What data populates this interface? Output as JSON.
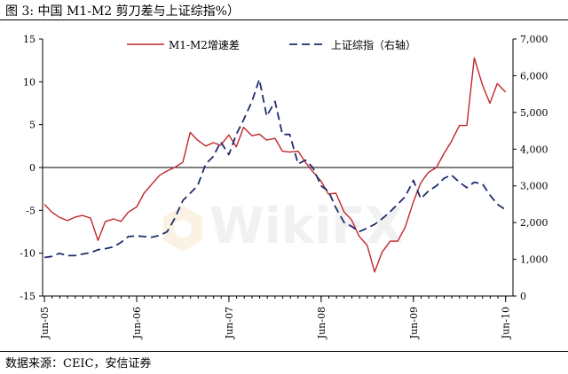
{
  "title": "图  3:  中国 M1-M2 剪刀差与上证综指%）",
  "source": "数据来源：CEIC，安信证券",
  "watermark": "WikiFX",
  "colors": {
    "m1m2": "#c0272d",
    "sse": "#1f2d6e",
    "axis": "#000000"
  },
  "chart_data": {
    "type": "line",
    "x_tick_labels": [
      "Jun-05",
      "Jun-06",
      "Jun-07",
      "Jun-08",
      "Jun-09",
      "Jun-10"
    ],
    "x_range": [
      2005.4,
      2010.5
    ],
    "y_left": {
      "range": [
        -15,
        15
      ],
      "ticks": [
        "15",
        "10",
        "5",
        "0",
        "-5",
        "-10",
        "-15"
      ]
    },
    "y_right": {
      "range": [
        0,
        7000
      ],
      "ticks": [
        "7,000",
        "6,000",
        "5,000",
        "4,000",
        "3,000",
        "2,000",
        "1,000",
        "0"
      ]
    },
    "series": [
      {
        "name": "M1-M2增速差",
        "axis": "left",
        "style": "solid",
        "x": [
          2005.42,
          2005.5,
          2005.58,
          2005.67,
          2005.75,
          2005.83,
          2005.92,
          2006.0,
          2006.08,
          2006.17,
          2006.25,
          2006.33,
          2006.42,
          2006.5,
          2006.58,
          2006.67,
          2006.75,
          2006.83,
          2006.92,
          2007.0,
          2007.08,
          2007.17,
          2007.25,
          2007.33,
          2007.42,
          2007.5,
          2007.58,
          2007.67,
          2007.75,
          2007.83,
          2007.92,
          2008.0,
          2008.08,
          2008.17,
          2008.25,
          2008.33,
          2008.42,
          2008.5,
          2008.58,
          2008.67,
          2008.75,
          2008.83,
          2008.92,
          2009.0,
          2009.08,
          2009.17,
          2009.25,
          2009.33,
          2009.42,
          2009.5,
          2009.58,
          2009.67,
          2009.75,
          2009.83,
          2009.92,
          2010.0,
          2010.08,
          2010.17,
          2010.25,
          2010.33,
          2010.42
        ],
        "values": [
          -4.3,
          -5.2,
          -5.8,
          -6.2,
          -5.8,
          -5.6,
          -5.9,
          -8.5,
          -6.3,
          -6.0,
          -6.3,
          -5.2,
          -4.6,
          -3.0,
          -2.0,
          -0.9,
          -0.4,
          0.0,
          0.6,
          4.1,
          3.2,
          2.5,
          2.9,
          2.6,
          3.8,
          2.4,
          4.7,
          3.7,
          3.9,
          3.2,
          3.4,
          1.9,
          1.8,
          1.9,
          0.6,
          -0.5,
          -1.6,
          -3.1,
          -3.0,
          -5.2,
          -6.1,
          -8.0,
          -9.1,
          -12.2,
          -9.9,
          -8.6,
          -8.6,
          -7.0,
          -4.0,
          -1.8,
          -0.6,
          0.0,
          1.6,
          3.0,
          4.9,
          4.9,
          12.8,
          9.6,
          7.5,
          9.8,
          8.8
        ]
      },
      {
        "name": "上证综指（右轴）",
        "axis": "right",
        "style": "dashed",
        "x": [
          2005.42,
          2005.5,
          2005.58,
          2005.67,
          2005.75,
          2005.83,
          2005.92,
          2006.0,
          2006.08,
          2006.17,
          2006.25,
          2006.33,
          2006.42,
          2006.5,
          2006.58,
          2006.67,
          2006.75,
          2006.83,
          2006.92,
          2007.0,
          2007.08,
          2007.17,
          2007.25,
          2007.33,
          2007.42,
          2007.5,
          2007.58,
          2007.67,
          2007.75,
          2007.83,
          2007.92,
          2008.0,
          2008.08,
          2008.17,
          2008.25,
          2008.33,
          2008.42,
          2008.5,
          2008.58,
          2008.67,
          2008.75,
          2008.83,
          2008.92,
          2009.0,
          2009.08,
          2009.17,
          2009.25,
          2009.33,
          2009.42,
          2009.5,
          2009.58,
          2009.67,
          2009.75,
          2009.83,
          2009.92,
          2010.0,
          2010.08,
          2010.17,
          2010.25,
          2010.33,
          2010.42
        ],
        "values": [
          1050,
          1080,
          1160,
          1100,
          1100,
          1140,
          1180,
          1260,
          1290,
          1340,
          1460,
          1620,
          1640,
          1620,
          1600,
          1650,
          1750,
          2100,
          2600,
          2800,
          3000,
          3600,
          3800,
          4200,
          3850,
          4400,
          4800,
          5300,
          5900,
          4900,
          5300,
          4400,
          4400,
          3600,
          3700,
          3500,
          3000,
          2850,
          2400,
          2000,
          1900,
          1750,
          1850,
          1950,
          2100,
          2300,
          2500,
          2700,
          3150,
          2650,
          2850,
          3000,
          3200,
          3300,
          3100,
          2950,
          3100,
          3050,
          2750,
          2500,
          2350
        ]
      }
    ]
  }
}
